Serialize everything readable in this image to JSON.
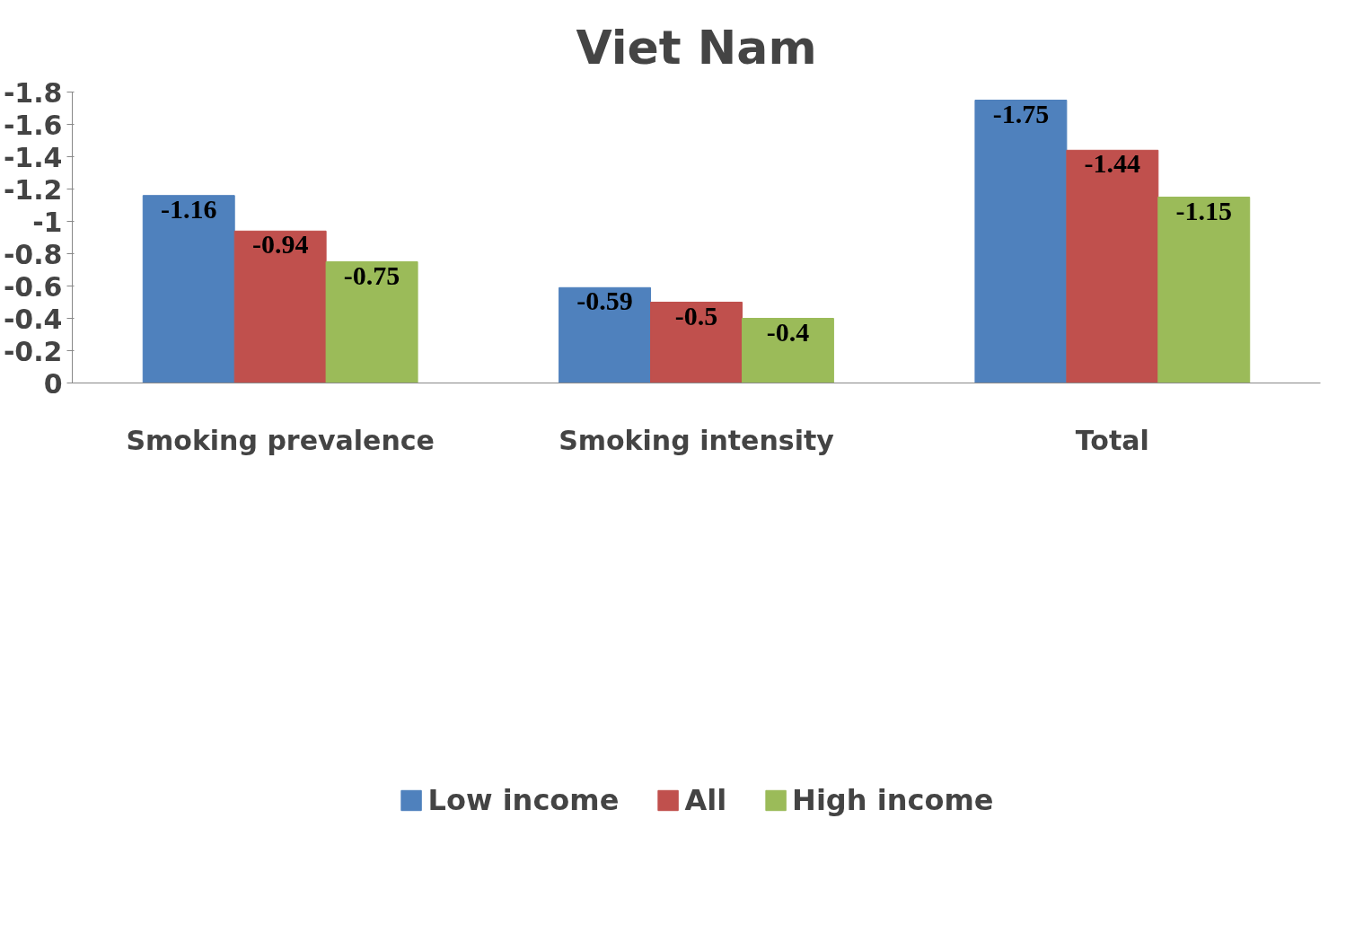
{
  "chart_data": {
    "type": "bar",
    "title": "Viet Nam",
    "categories": [
      "Smoking prevalence",
      "Smoking intensity",
      "Total"
    ],
    "series": [
      {
        "name": "Low income",
        "color": "#4f81bd",
        "values": [
          -1.16,
          -0.59,
          -1.75
        ]
      },
      {
        "name": "All",
        "color": "#c0504d",
        "values": [
          -0.94,
          -0.5,
          -1.44
        ]
      },
      {
        "name": "High income",
        "color": "#9bbb59",
        "values": [
          -0.75,
          -0.4,
          -1.15
        ]
      }
    ],
    "ylim": [
      0,
      -1.8
    ],
    "yticks": [
      0,
      -0.2,
      -0.4,
      -0.6,
      -0.8,
      -1,
      -1.2,
      -1.4,
      -1.6,
      -1.8
    ],
    "data_labels": true,
    "grid": false,
    "legend": "bottom"
  }
}
